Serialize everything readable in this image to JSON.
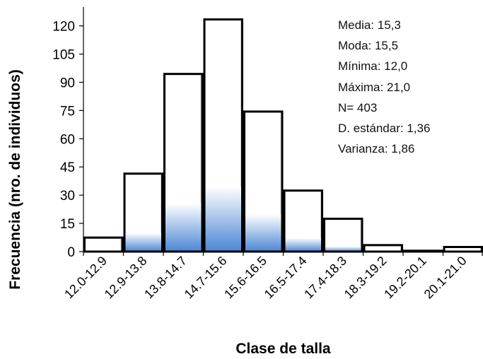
{
  "chart_data": {
    "type": "bar",
    "title": "",
    "xlabel": "Clase de talla",
    "ylabel": "Frecuencia (nro. de individuos)",
    "ylim": [
      0,
      130
    ],
    "yticks": [
      0,
      15,
      30,
      45,
      60,
      75,
      90,
      105,
      120
    ],
    "categories": [
      "12.0-12.9",
      "12.9-13.8",
      "13.8-14.7",
      "14.7-15.6",
      "15.6-16.5",
      "16.5-17.4",
      "17.4-18.3",
      "18.3-19.2",
      "19.2-20.1",
      "20.1-21.0"
    ],
    "values": [
      8,
      42,
      95,
      124,
      75,
      33,
      18,
      4,
      1,
      3
    ],
    "grid": false,
    "colors": {
      "bar_fill": "#ffffff",
      "bar_edge": "#000000",
      "gradient_accent": "#4a86d4"
    },
    "annotations": [
      "Media: 15,3",
      "Moda: 15,5",
      "Mínima: 12,0",
      "Máxima: 21,0",
      "N=  403",
      "D. estándar: 1,36",
      "Varianza: 1,86"
    ]
  }
}
